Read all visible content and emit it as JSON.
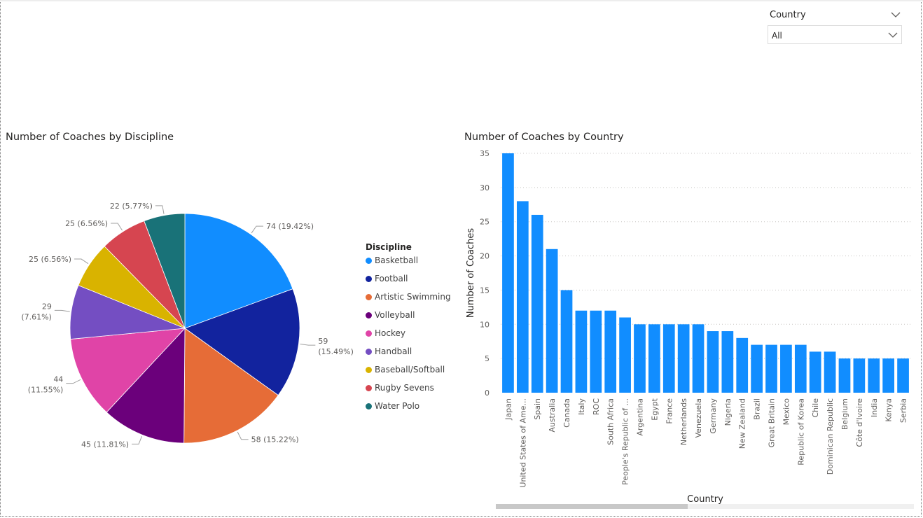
{
  "slicer": {
    "title": "Country",
    "value": "All"
  },
  "pie_visual": {
    "title": "Number of Coaches by Discipline",
    "legend_title": "Discipline",
    "slices": [
      {
        "name": "Basketball",
        "value": 74,
        "label": "74 (19.42%)",
        "color": "#118DFF"
      },
      {
        "name": "Football",
        "value": 59,
        "label": "59 (15.49%)",
        "color": "#12239E"
      },
      {
        "name": "Artistic Swimming",
        "value": 58,
        "label": "58 (15.22%)",
        "color": "#E66C37"
      },
      {
        "name": "Volleyball",
        "value": 45,
        "label": "45 (11.81%)",
        "color": "#6B007B"
      },
      {
        "name": "Hockey",
        "value": 44,
        "label": "44 (11.55%)",
        "color": "#E044A7"
      },
      {
        "name": "Handball",
        "value": 29,
        "label": "29 (7.61%)",
        "color": "#744EC2"
      },
      {
        "name": "Baseball/Softball",
        "value": 25,
        "label": "25 (6.56%)",
        "color": "#D9B300"
      },
      {
        "name": "Rugby Sevens",
        "value": 25,
        "label": "25 (6.56%)",
        "color": "#D64550"
      },
      {
        "name": "Water Polo",
        "value": 22,
        "label": "22 (5.77%)",
        "color": "#197278"
      }
    ]
  },
  "bar_visual": {
    "title": "Number of Coaches by Country",
    "xlabel": "Country",
    "ylabel": "Number of Coaches",
    "bar_color": "#118DFF"
  },
  "chart_data": [
    {
      "type": "pie",
      "title": "Number of Coaches by Discipline",
      "legend": {
        "title": "Discipline",
        "position": "right"
      },
      "categories": [
        "Basketball",
        "Football",
        "Artistic Swimming",
        "Volleyball",
        "Hockey",
        "Handball",
        "Baseball/Softball",
        "Rugby Sevens",
        "Water Polo"
      ],
      "values": [
        74,
        59,
        58,
        45,
        44,
        29,
        25,
        25,
        22
      ]
    },
    {
      "type": "bar",
      "title": "Number of Coaches by Country",
      "xlabel": "Country",
      "ylabel": "Number of Coaches",
      "ylim": [
        0,
        35
      ],
      "yticks": [
        0,
        5,
        10,
        15,
        20,
        25,
        30,
        35
      ],
      "grid": true,
      "categories": [
        "Japan",
        "United States of Ame...",
        "Spain",
        "Australia",
        "Canada",
        "Italy",
        "ROC",
        "South Africa",
        "People's Republic of ...",
        "Argentina",
        "Egypt",
        "France",
        "Netherlands",
        "Venezuela",
        "Germany",
        "Nigeria",
        "New Zealand",
        "Brazil",
        "Great Britain",
        "Mexico",
        "Republic of Korea",
        "Chile",
        "Dominican Republic",
        "Belgium",
        "Côte d'Ivoire",
        "India",
        "Kenya",
        "Serbia"
      ],
      "values": [
        35,
        28,
        26,
        21,
        15,
        12,
        12,
        12,
        11,
        10,
        10,
        10,
        10,
        10,
        9,
        9,
        8,
        7,
        7,
        7,
        7,
        6,
        6,
        5,
        5,
        5,
        5,
        5
      ]
    }
  ]
}
